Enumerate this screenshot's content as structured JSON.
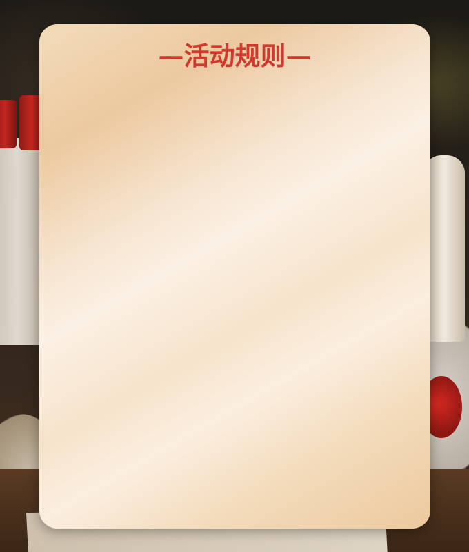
{
  "modal": {
    "title": "—活动规则—"
  },
  "colors": {
    "title": "#d0392d",
    "card_gradient_light": "#fbf0e4",
    "card_gradient_dark": "#ecc9a0"
  }
}
